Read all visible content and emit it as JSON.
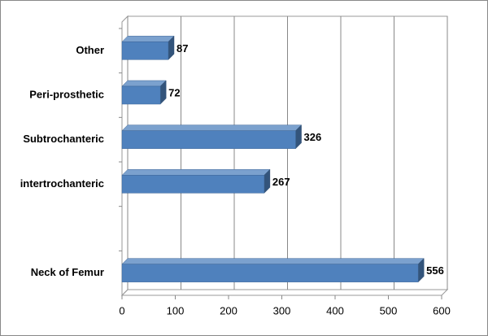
{
  "chart_data": {
    "type": "bar",
    "orientation": "horizontal",
    "categories": [
      "Other",
      "Peri-prosthetic",
      "Subtrochanteric",
      "intertrochanteric",
      null,
      "Neck of Femur"
    ],
    "values": [
      87,
      72,
      326,
      267,
      null,
      556
    ],
    "color": "#4f81bd",
    "xlim": [
      0,
      600
    ],
    "xticks": [
      0,
      100,
      200,
      300,
      400,
      500,
      600
    ],
    "grid": true
  }
}
